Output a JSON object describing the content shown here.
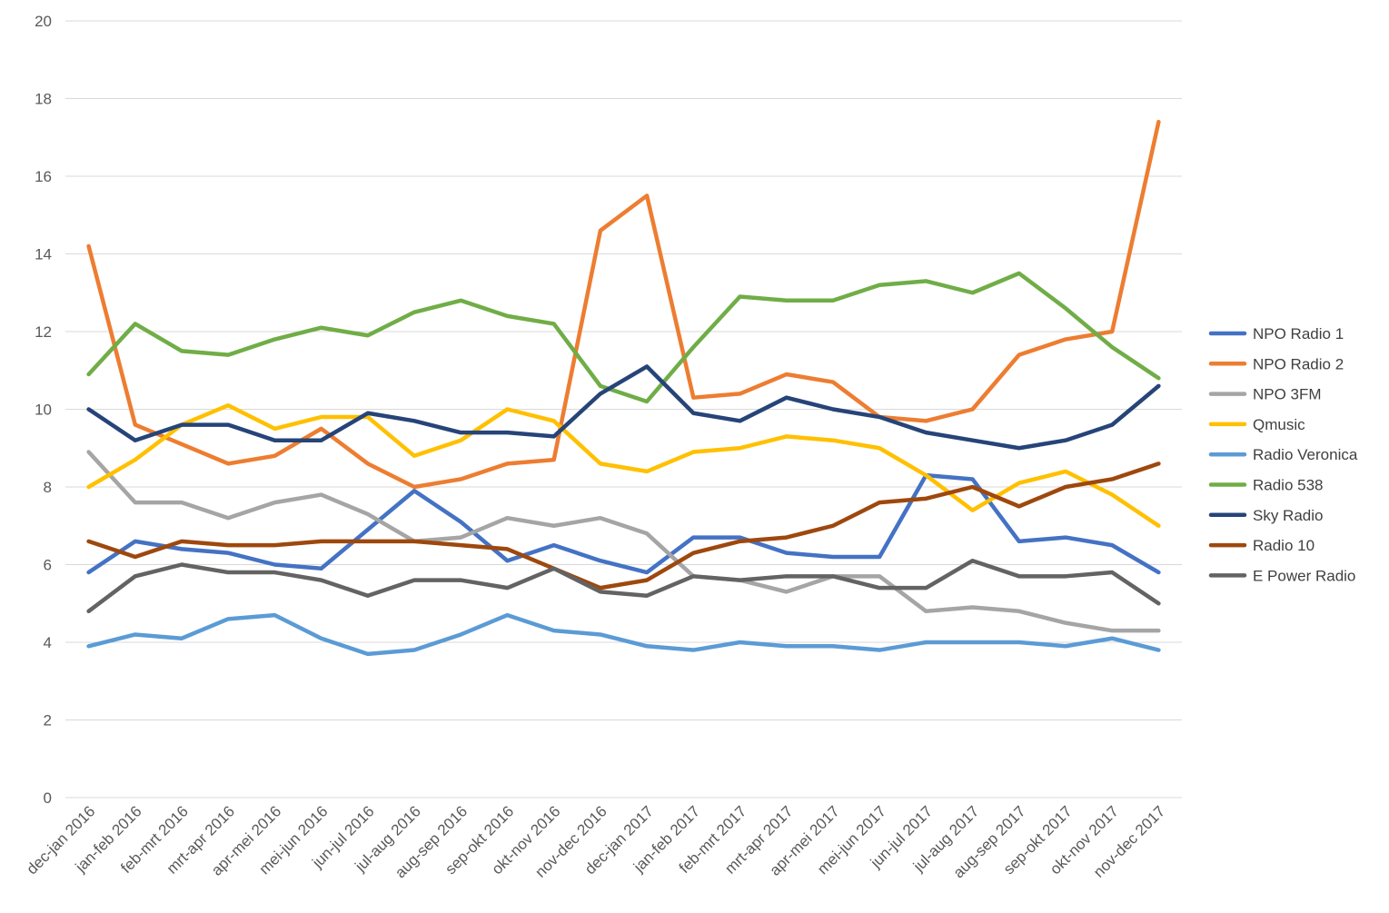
{
  "chart_data": {
    "type": "line",
    "title": "",
    "xlabel": "",
    "ylabel": "",
    "ylim": [
      0,
      20
    ],
    "yticks": [
      0,
      2,
      4,
      6,
      8,
      10,
      12,
      14,
      16,
      18,
      20
    ],
    "grid": true,
    "legend_position": "right",
    "categories": [
      "dec-jan 2016",
      "jan-feb 2016",
      "feb-mrt 2016",
      "mrt-apr 2016",
      "apr-mei 2016",
      "mei-jun 2016",
      "jun-jul 2016",
      "jul-aug 2016",
      "aug-sep 2016",
      "sep-okt 2016",
      "okt-nov 2016",
      "nov-dec 2016",
      "dec-jan 2017",
      "jan-feb 2017",
      "feb-mrt 2017",
      "mrt-apr 2017",
      "apr-mei 2017",
      "mei-jun 2017",
      "jun-jul 2017",
      "jul-aug 2017",
      "aug-sep 2017",
      "sep-okt 2017",
      "okt-nov 2017",
      "nov-dec 2017"
    ],
    "series": [
      {
        "name": "NPO Radio 1",
        "color": "#4472c4",
        "values": [
          5.8,
          6.6,
          6.4,
          6.3,
          6.0,
          5.9,
          6.9,
          7.9,
          7.1,
          6.1,
          6.5,
          6.1,
          5.8,
          6.7,
          6.7,
          6.3,
          6.2,
          6.2,
          8.3,
          8.2,
          6.6,
          6.7,
          6.5,
          5.8
        ]
      },
      {
        "name": "NPO Radio 2",
        "color": "#ed7d31",
        "values": [
          14.2,
          9.6,
          9.1,
          8.6,
          8.8,
          9.5,
          8.6,
          8.0,
          8.2,
          8.6,
          8.7,
          14.6,
          15.5,
          10.3,
          10.4,
          10.9,
          10.7,
          9.8,
          9.7,
          10.0,
          11.4,
          11.8,
          12.0,
          17.4
        ]
      },
      {
        "name": "NPO 3FM",
        "color": "#a5a5a5",
        "values": [
          8.9,
          7.6,
          7.6,
          7.2,
          7.6,
          7.8,
          7.3,
          6.6,
          6.7,
          7.2,
          7.0,
          7.2,
          6.8,
          5.7,
          5.6,
          5.3,
          5.7,
          5.7,
          4.8,
          4.9,
          4.8,
          4.5,
          4.3,
          4.3
        ]
      },
      {
        "name": "Qmusic",
        "color": "#ffc000",
        "values": [
          8.0,
          8.7,
          9.6,
          10.1,
          9.5,
          9.8,
          9.8,
          8.8,
          9.2,
          10.0,
          9.7,
          8.6,
          8.4,
          8.9,
          9.0,
          9.3,
          9.2,
          9.0,
          8.3,
          7.4,
          8.1,
          8.4,
          7.8,
          7.0
        ]
      },
      {
        "name": "Radio Veronica",
        "color": "#5b9bd5",
        "values": [
          3.9,
          4.2,
          4.1,
          4.6,
          4.7,
          4.1,
          3.7,
          3.8,
          4.2,
          4.7,
          4.3,
          4.2,
          3.9,
          3.8,
          4.0,
          3.9,
          3.9,
          3.8,
          4.0,
          4.0,
          4.0,
          3.9,
          4.1,
          3.8
        ]
      },
      {
        "name": "Radio 538",
        "color": "#70ad47",
        "values": [
          10.9,
          12.2,
          11.5,
          11.4,
          11.8,
          12.1,
          11.9,
          12.5,
          12.8,
          12.4,
          12.2,
          10.6,
          10.2,
          11.6,
          12.9,
          12.8,
          12.8,
          13.2,
          13.3,
          13.0,
          13.5,
          12.6,
          11.6,
          10.8
        ]
      },
      {
        "name": "Sky Radio",
        "color": "#264478",
        "values": [
          10.0,
          9.2,
          9.6,
          9.6,
          9.2,
          9.2,
          9.9,
          9.7,
          9.4,
          9.4,
          9.3,
          10.4,
          11.1,
          9.9,
          9.7,
          10.3,
          10.0,
          9.8,
          9.4,
          9.2,
          9.0,
          9.2,
          9.6,
          10.6
        ]
      },
      {
        "name": "Radio 10",
        "color": "#9e480e",
        "values": [
          6.6,
          6.2,
          6.6,
          6.5,
          6.5,
          6.6,
          6.6,
          6.6,
          6.5,
          6.4,
          5.9,
          5.4,
          5.6,
          6.3,
          6.6,
          6.7,
          7.0,
          7.6,
          7.7,
          8.0,
          7.5,
          8.0,
          8.2,
          8.6
        ]
      },
      {
        "name": "E Power Radio",
        "color": "#636363",
        "values": [
          4.8,
          5.7,
          6.0,
          5.8,
          5.8,
          5.6,
          5.2,
          5.6,
          5.6,
          5.4,
          5.9,
          5.3,
          5.2,
          5.7,
          5.6,
          5.7,
          5.7,
          5.4,
          5.4,
          6.1,
          5.7,
          5.7,
          5.8,
          5.0
        ]
      }
    ]
  }
}
